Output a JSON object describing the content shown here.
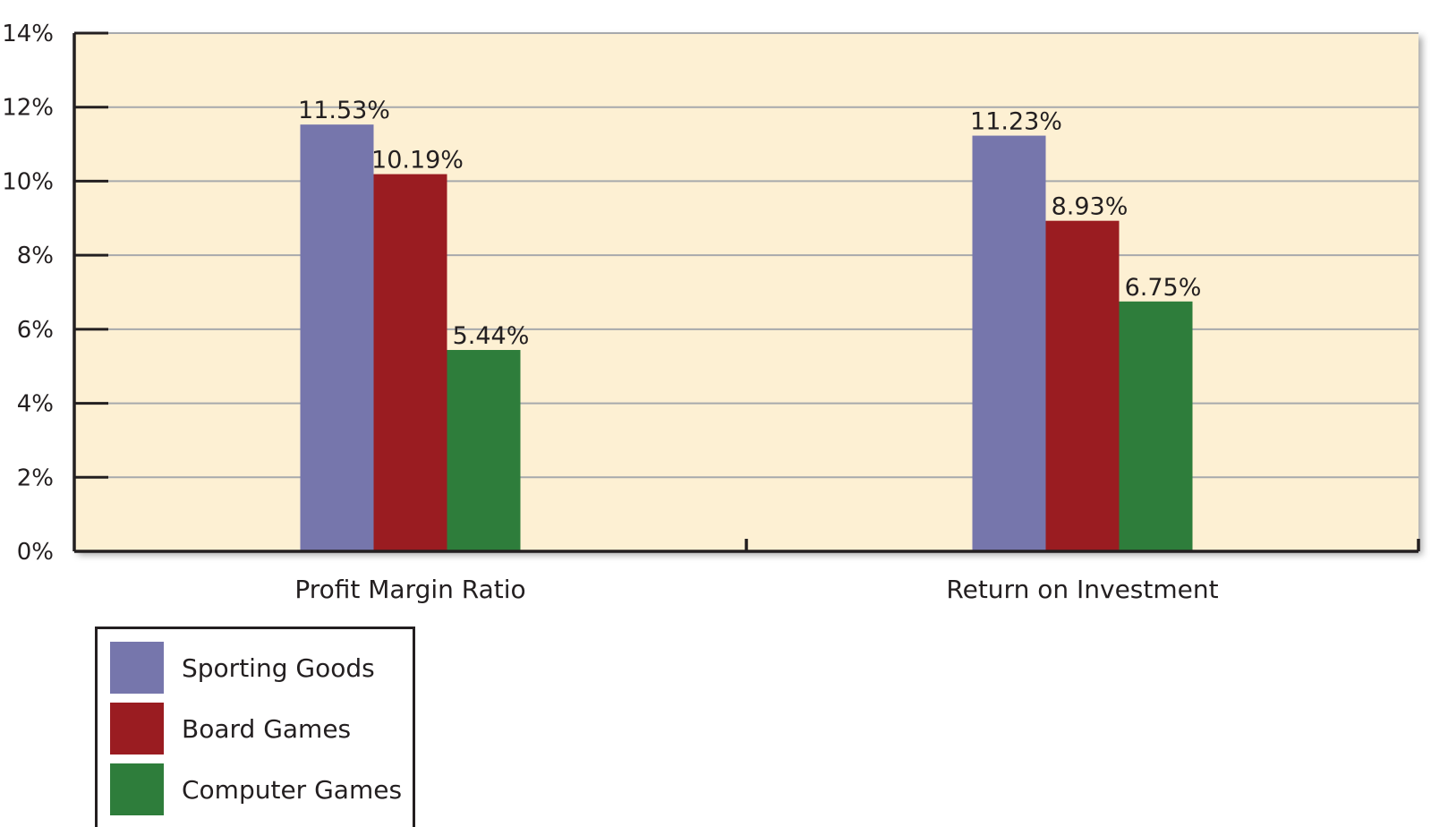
{
  "chart_data": {
    "type": "bar",
    "categories": [
      "Profit Margin Ratio",
      "Return on Investment"
    ],
    "series": [
      {
        "name": "Sporting Goods",
        "color": "#7676ac",
        "values": [
          11.53,
          11.23
        ],
        "labels": [
          "11.53%",
          "11.23%"
        ]
      },
      {
        "name": "Board Games",
        "color": "#9a1c21",
        "values": [
          10.19,
          8.93
        ],
        "labels": [
          "10.19%",
          "8.93%"
        ]
      },
      {
        "name": "Computer Games",
        "color": "#2e7d3b",
        "values": [
          5.44,
          6.75
        ],
        "labels": [
          "5.44%",
          "6.75%"
        ]
      }
    ],
    "ylim": [
      0,
      14
    ],
    "y_ticks": [
      0,
      2,
      4,
      6,
      8,
      10,
      12,
      14
    ],
    "y_tick_labels": [
      "0%",
      "2%",
      "4%",
      "6%",
      "8%",
      "10%",
      "12%",
      "14%"
    ],
    "grid": true,
    "legend_position": "bottom-left",
    "plot_background": "#fdf0d3"
  }
}
